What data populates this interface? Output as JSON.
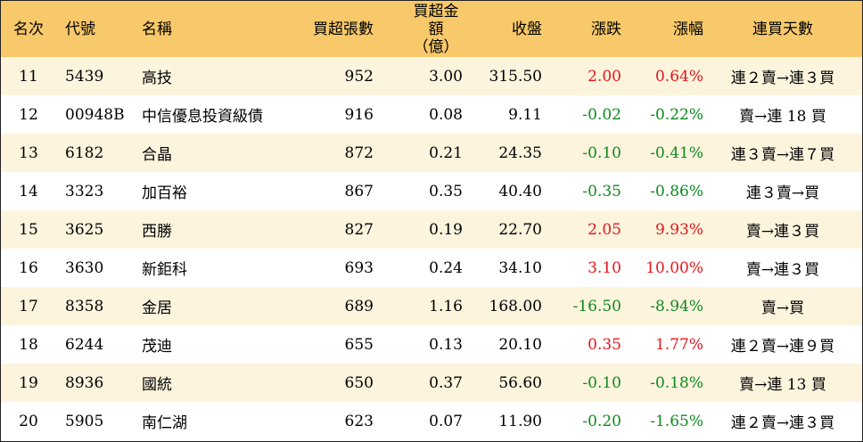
{
  "header": {
    "rank": "名次",
    "code": "代號",
    "name": "名稱",
    "net_buy_lots": "買超張數",
    "net_buy_amount_line1": "買超金額",
    "net_buy_amount_line2": "（億）",
    "close": "收盤",
    "change": "漲跌",
    "change_pct": "漲幅",
    "consecutive_days": "連買天數"
  },
  "rows": [
    {
      "rank": "11",
      "code": "5439",
      "name": "高技",
      "lots": "952",
      "amount": "3.00",
      "close": "315.50",
      "change": "2.00",
      "pct": "0.64%",
      "days": "連２賣→連３買",
      "dir": "up"
    },
    {
      "rank": "12",
      "code": "00948B",
      "name": "中信優息投資級債",
      "lots": "916",
      "amount": "0.08",
      "close": "9.11",
      "change": "-0.02",
      "pct": "-0.22%",
      "days": "賣→連 18 買",
      "dir": "down"
    },
    {
      "rank": "13",
      "code": "6182",
      "name": "合晶",
      "lots": "872",
      "amount": "0.21",
      "close": "24.35",
      "change": "-0.10",
      "pct": "-0.41%",
      "days": "連３賣→連７買",
      "dir": "down"
    },
    {
      "rank": "14",
      "code": "3323",
      "name": "加百裕",
      "lots": "867",
      "amount": "0.35",
      "close": "40.40",
      "change": "-0.35",
      "pct": "-0.86%",
      "days": "連３賣→買",
      "dir": "down"
    },
    {
      "rank": "15",
      "code": "3625",
      "name": "西勝",
      "lots": "827",
      "amount": "0.19",
      "close": "22.70",
      "change": "2.05",
      "pct": "9.93%",
      "days": "賣→連３買",
      "dir": "up"
    },
    {
      "rank": "16",
      "code": "3630",
      "name": "新鉅科",
      "lots": "693",
      "amount": "0.24",
      "close": "34.10",
      "change": "3.10",
      "pct": "10.00%",
      "days": "賣→連３買",
      "dir": "up"
    },
    {
      "rank": "17",
      "code": "8358",
      "name": "金居",
      "lots": "689",
      "amount": "1.16",
      "close": "168.00",
      "change": "-16.50",
      "pct": "-8.94%",
      "days": "賣→買",
      "dir": "down"
    },
    {
      "rank": "18",
      "code": "6244",
      "name": "茂迪",
      "lots": "655",
      "amount": "0.13",
      "close": "20.10",
      "change": "0.35",
      "pct": "1.77%",
      "days": "連２賣→連９買",
      "dir": "up"
    },
    {
      "rank": "19",
      "code": "8936",
      "name": "國統",
      "lots": "650",
      "amount": "0.37",
      "close": "56.60",
      "change": "-0.10",
      "pct": "-0.18%",
      "days": "賣→連 13 買",
      "dir": "down"
    },
    {
      "rank": "20",
      "code": "5905",
      "name": "南仁湖",
      "lots": "623",
      "amount": "0.07",
      "close": "11.90",
      "change": "-0.20",
      "pct": "-1.65%",
      "days": "連２賣→連３買",
      "dir": "down"
    }
  ],
  "colors": {
    "header_bg": "#f8c96a",
    "odd_row_bg": "#fdf4de",
    "even_row_bg": "#ffffff",
    "up": "#e8141b",
    "down": "#0c8a1e"
  }
}
